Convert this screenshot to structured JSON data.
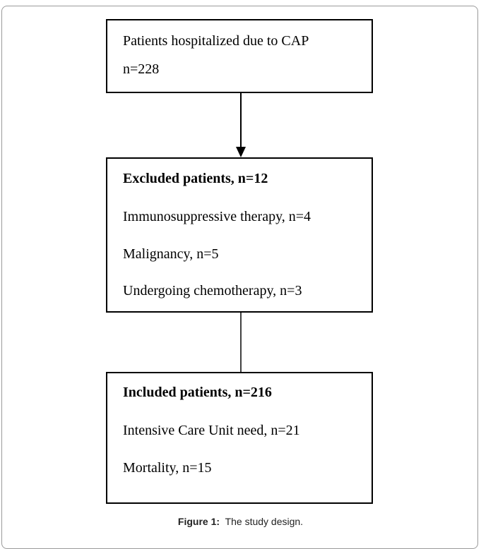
{
  "nodes": [
    {
      "lines": [
        "Patients hospitalized due to CAP",
        "n=228"
      ]
    },
    {
      "title": "Excluded patients, n=12",
      "lines": [
        "Immunosuppressive therapy, n=4",
        "Malignancy, n=5",
        "Undergoing chemotherapy, n=3"
      ]
    },
    {
      "title": "Included patients, n=216",
      "lines": [
        "Intensive Care Unit need, n=21",
        "Mortality, n=15"
      ]
    }
  ],
  "caption": {
    "label": "Figure 1:",
    "text": "The study design."
  }
}
